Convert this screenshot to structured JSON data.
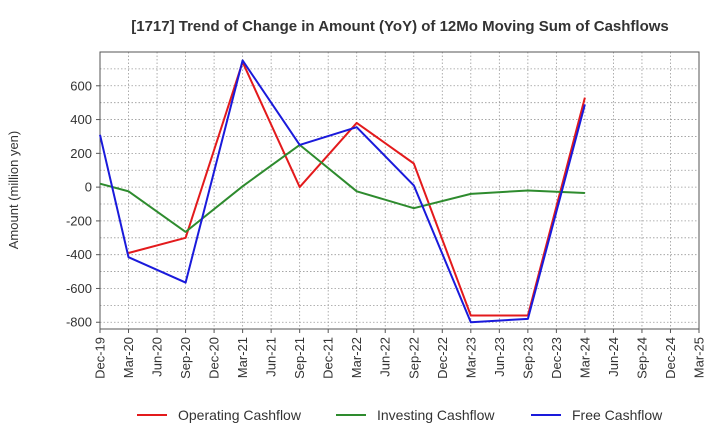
{
  "chart_data": {
    "type": "line",
    "title": "[1717]  Trend of Change in Amount (YoY) of 12Mo Moving Sum of Cashflows",
    "xlabel": "",
    "ylabel": "Amount (million yen)",
    "ylim": [
      -840,
      800
    ],
    "yticks": [
      600,
      400,
      200,
      0,
      -200,
      -400,
      -600,
      -800
    ],
    "categories": [
      "Dec-19",
      "Mar-20",
      "Jun-20",
      "Sep-20",
      "Dec-20",
      "Mar-21",
      "Jun-21",
      "Sep-21",
      "Dec-21",
      "Mar-22",
      "Jun-22",
      "Sep-22",
      "Dec-22",
      "Mar-23",
      "Jun-23",
      "Sep-23",
      "Dec-23",
      "Mar-24",
      "Jun-24",
      "Sep-24",
      "Dec-24",
      "Mar-25"
    ],
    "grid": true,
    "legend_position": "bottom",
    "series": [
      {
        "name": "Operating Cashflow",
        "color": "#e31a1c",
        "values": [
          null,
          -390,
          null,
          -300,
          null,
          740,
          null,
          0,
          null,
          380,
          null,
          140,
          null,
          -760,
          null,
          -760,
          null,
          530,
          null,
          null,
          null,
          null
        ]
      },
      {
        "name": "Investing Cashflow",
        "color": "#2e8b2e",
        "values": [
          20,
          -25,
          null,
          -265,
          null,
          5,
          null,
          250,
          null,
          -25,
          null,
          -125,
          null,
          -40,
          null,
          -20,
          null,
          -35,
          null,
          null,
          null,
          null
        ]
      },
      {
        "name": "Free Cashflow",
        "color": "#1a1adb",
        "values": [
          310,
          -415,
          null,
          -565,
          null,
          750,
          null,
          250,
          null,
          355,
          null,
          10,
          null,
          -800,
          null,
          -780,
          null,
          490,
          null,
          null,
          null,
          null
        ]
      }
    ]
  }
}
